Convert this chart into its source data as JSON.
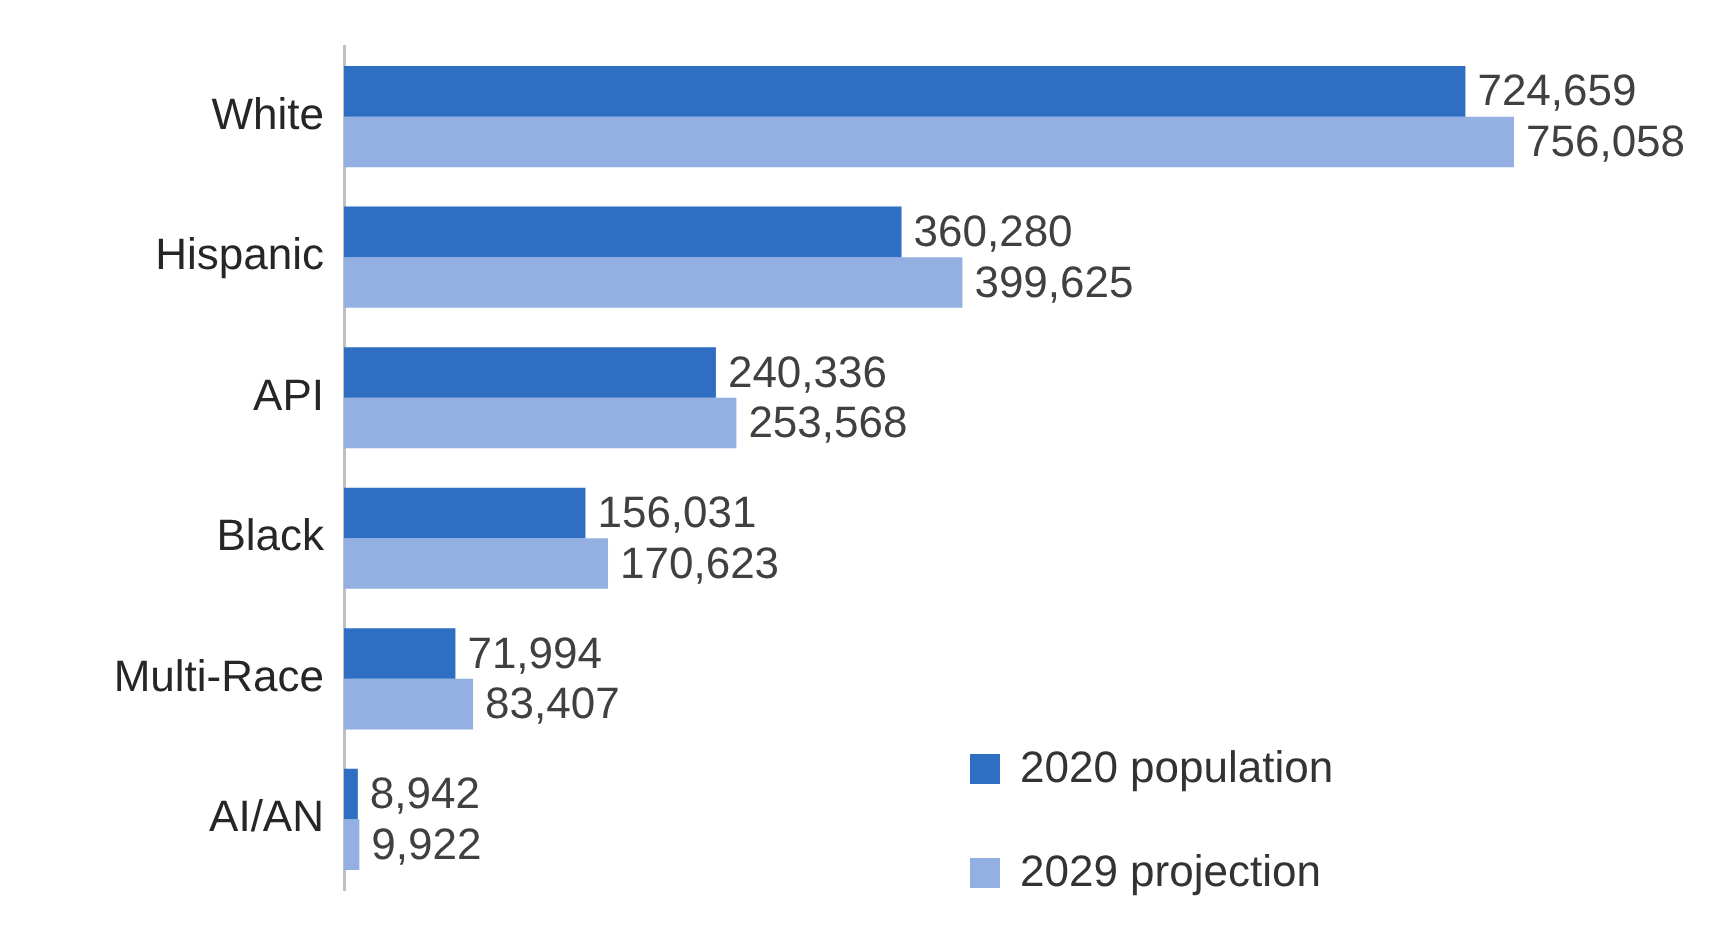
{
  "chart_data": {
    "type": "bar",
    "orientation": "horizontal",
    "categories": [
      "White",
      "Hispanic",
      "API",
      "Black",
      "Multi-Race",
      "AI/AN"
    ],
    "series": [
      {
        "name": "2020 population",
        "color": "#2e6fc4",
        "values": [
          724659,
          360280,
          240336,
          156031,
          71994,
          8942
        ],
        "value_labels": [
          "724,659",
          "360,280",
          "240,336",
          "156,031",
          "71,994",
          "8,942"
        ]
      },
      {
        "name": "2029 projection",
        "color": "#94b0e2",
        "values": [
          756058,
          399625,
          253568,
          170623,
          83407,
          9922
        ],
        "value_labels": [
          "756,058",
          "399,625",
          "253,568",
          "170,623",
          "83,407",
          "9,922"
        ]
      }
    ],
    "legend": "bottom right"
  }
}
